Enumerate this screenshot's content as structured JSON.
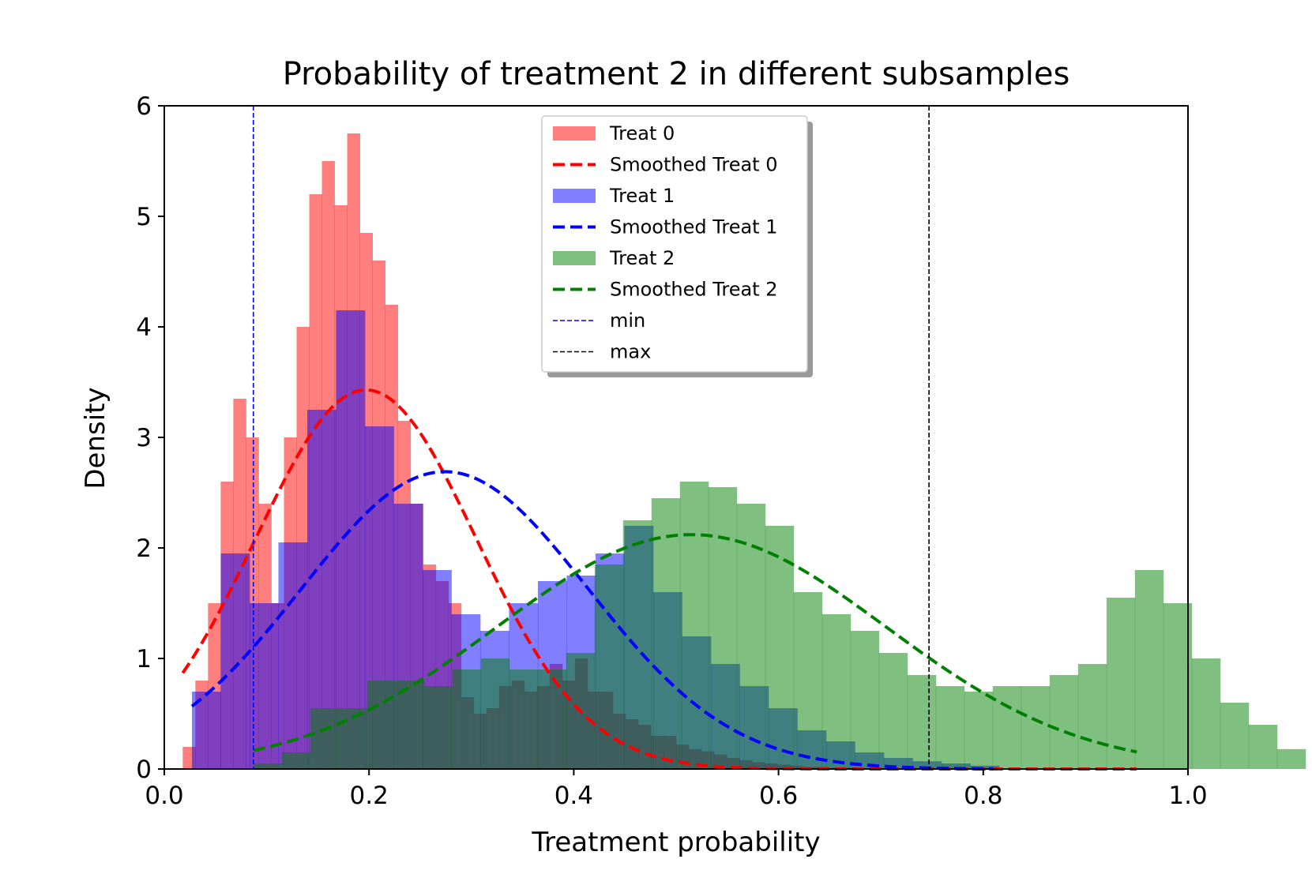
{
  "chart_data": {
    "type": "bar",
    "title": "Probability of treatment 2 in different subsamples",
    "xlabel": "Treatment probability",
    "ylabel": "Density",
    "xlim": [
      0.0,
      1.0
    ],
    "ylim": [
      0,
      6
    ],
    "xticks": [
      0.0,
      0.2,
      0.4,
      0.6,
      0.8,
      1.0
    ],
    "xtick_labels": [
      "0.0",
      "0.2",
      "0.4",
      "0.6",
      "0.8",
      "1.0"
    ],
    "yticks": [
      0,
      1,
      2,
      3,
      4,
      5,
      6
    ],
    "ytick_labels": [
      "0",
      "1",
      "2",
      "3",
      "4",
      "5",
      "6"
    ],
    "grid": false,
    "legend_position": "top-center",
    "histograms": [
      {
        "name": "Treat 0",
        "color": "#ff0000",
        "alpha": 0.5,
        "start": 0.018,
        "bin_width": 0.01236,
        "values": [
          0.2,
          0.8,
          1.5,
          2.6,
          3.35,
          3.0,
          2.4,
          1.5,
          3.0,
          4.0,
          5.2,
          5.5,
          5.1,
          5.75,
          4.85,
          4.6,
          4.2,
          3.15,
          2.4,
          1.85,
          1.7,
          1.5,
          0.65,
          0.5,
          0.55,
          0.75,
          0.8,
          0.7,
          0.75,
          0.95,
          0.8,
          1.0,
          0.7,
          0.7,
          0.5,
          0.45,
          0.4,
          0.3,
          0.3,
          0.22,
          0.18,
          0.16,
          0.13,
          0.1,
          0.08,
          0.06,
          0.05,
          0.04,
          0.03,
          0.02,
          0.02,
          0.01,
          0.01
        ]
      },
      {
        "name": "Treat 1",
        "color": "#0000ff",
        "alpha": 0.5,
        "start": 0.027,
        "bin_width": 0.02816,
        "values": [
          0.7,
          1.95,
          1.5,
          2.05,
          3.25,
          4.15,
          3.1,
          2.4,
          1.8,
          1.4,
          1.25,
          1.5,
          1.7,
          1.75,
          1.95,
          2.2,
          1.6,
          1.2,
          0.95,
          0.75,
          0.55,
          0.35,
          0.25,
          0.15,
          0.1,
          0.07,
          0.05,
          0.03
        ]
      },
      {
        "name": "Treat 2",
        "color": "#008000",
        "alpha": 0.5,
        "start": 0.087,
        "bin_width": 0.02778,
        "values": [
          0.05,
          0.15,
          0.55,
          0.55,
          0.8,
          0.8,
          0.75,
          0.9,
          1.0,
          0.9,
          0.9,
          1.05,
          1.85,
          2.25,
          2.45,
          2.6,
          2.55,
          2.4,
          2.2,
          1.6,
          1.4,
          1.25,
          1.05,
          0.85,
          0.75,
          0.7,
          0.75,
          0.75,
          0.85,
          0.95,
          1.55,
          1.8,
          1.5,
          1.0,
          0.6,
          0.4,
          0.18
        ]
      }
    ],
    "smoothed_curves": [
      {
        "name": "Smoothed Treat 0",
        "color": "#ff0000",
        "amplitude": 3.43,
        "mean": 0.197,
        "sd": 0.108,
        "x_range": [
          0.018,
          0.95
        ]
      },
      {
        "name": "Smoothed Treat 1",
        "color": "#0000ff",
        "amplitude": 2.69,
        "mean": 0.274,
        "sd": 0.14,
        "x_range": [
          0.027,
          0.81
        ]
      },
      {
        "name": "Smoothed Treat 2",
        "color": "#008000",
        "amplitude": 2.12,
        "mean": 0.515,
        "sd": 0.19,
        "x_range": [
          0.087,
          0.95
        ]
      }
    ],
    "reference_lines": [
      {
        "name": "min",
        "color": "#0000ff",
        "x": 0.087
      },
      {
        "name": "max",
        "color": "#000000",
        "x": 0.747
      }
    ],
    "legend": [
      {
        "label": "Treat 0",
        "kind": "patch",
        "color": "#ff0000",
        "alpha": 0.5
      },
      {
        "label": "Smoothed Treat 0",
        "kind": "thick-dash",
        "color": "#ff0000"
      },
      {
        "label": "Treat 1",
        "kind": "patch",
        "color": "#0000ff",
        "alpha": 0.5
      },
      {
        "label": "Smoothed Treat 1",
        "kind": "thick-dash",
        "color": "#0000ff"
      },
      {
        "label": "Treat 2",
        "kind": "patch",
        "color": "#008000",
        "alpha": 0.5
      },
      {
        "label": "Smoothed Treat 2",
        "kind": "thick-dash",
        "color": "#008000"
      },
      {
        "label": "min",
        "kind": "thin-dash",
        "color": "#0000ff"
      },
      {
        "label": "max",
        "kind": "thin-dash",
        "color": "#000000"
      }
    ]
  }
}
